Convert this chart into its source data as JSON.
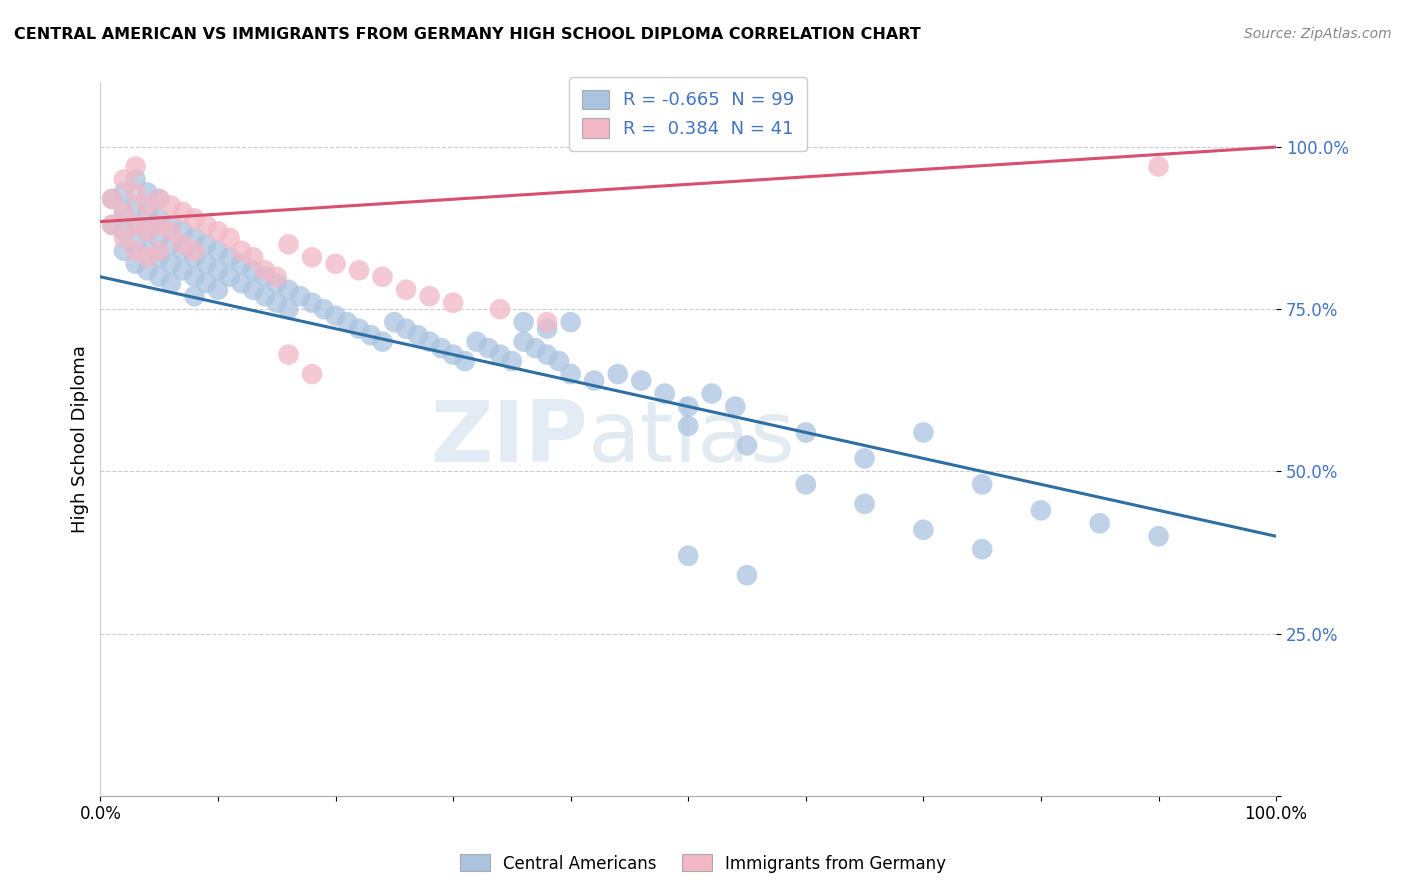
{
  "title": "CENTRAL AMERICAN VS IMMIGRANTS FROM GERMANY HIGH SCHOOL DIPLOMA CORRELATION CHART",
  "source": "Source: ZipAtlas.com",
  "ylabel": "High School Diploma",
  "ytick_labels": [
    "",
    "25.0%",
    "50.0%",
    "75.0%",
    "100.0%"
  ],
  "ytick_positions": [
    0.0,
    0.25,
    0.5,
    0.75,
    1.0
  ],
  "xlim": [
    0.0,
    1.0
  ],
  "ylim": [
    0.0,
    1.1
  ],
  "blue_R": -0.665,
  "blue_N": 99,
  "pink_R": 0.384,
  "pink_N": 41,
  "blue_color": "#aac4e0",
  "blue_line_color": "#2e6fa3",
  "pink_color": "#f2b8c6",
  "pink_line_color": "#d94f70",
  "watermark_zip": "ZIP",
  "watermark_atlas": "atlas",
  "legend_label_blue": "Central Americans",
  "legend_label_pink": "Immigrants from Germany",
  "blue_trend_start_y": 0.8,
  "blue_trend_end_y": 0.4,
  "pink_trend_start_y": 0.885,
  "pink_trend_end_y": 1.0,
  "blue_scatter_x": [
    0.01,
    0.01,
    0.02,
    0.02,
    0.02,
    0.02,
    0.03,
    0.03,
    0.03,
    0.03,
    0.03,
    0.04,
    0.04,
    0.04,
    0.04,
    0.04,
    0.05,
    0.05,
    0.05,
    0.05,
    0.05,
    0.06,
    0.06,
    0.06,
    0.06,
    0.07,
    0.07,
    0.07,
    0.08,
    0.08,
    0.08,
    0.08,
    0.09,
    0.09,
    0.09,
    0.1,
    0.1,
    0.1,
    0.11,
    0.11,
    0.12,
    0.12,
    0.13,
    0.13,
    0.14,
    0.14,
    0.15,
    0.15,
    0.16,
    0.16,
    0.17,
    0.18,
    0.19,
    0.2,
    0.21,
    0.22,
    0.23,
    0.24,
    0.25,
    0.26,
    0.27,
    0.28,
    0.29,
    0.3,
    0.31,
    0.32,
    0.33,
    0.34,
    0.35,
    0.36,
    0.37,
    0.38,
    0.39,
    0.4,
    0.42,
    0.44,
    0.46,
    0.48,
    0.5,
    0.52,
    0.54,
    0.36,
    0.38,
    0.4,
    0.5,
    0.55,
    0.6,
    0.65,
    0.7,
    0.75,
    0.8,
    0.85,
    0.9,
    0.5,
    0.55,
    0.6,
    0.65,
    0.7,
    0.75
  ],
  "blue_scatter_y": [
    0.92,
    0.88,
    0.93,
    0.9,
    0.87,
    0.84,
    0.91,
    0.88,
    0.85,
    0.82,
    0.95,
    0.9,
    0.87,
    0.84,
    0.81,
    0.93,
    0.89,
    0.86,
    0.83,
    0.8,
    0.92,
    0.88,
    0.85,
    0.82,
    0.79,
    0.87,
    0.84,
    0.81,
    0.86,
    0.83,
    0.8,
    0.77,
    0.85,
    0.82,
    0.79,
    0.84,
    0.81,
    0.78,
    0.83,
    0.8,
    0.82,
    0.79,
    0.81,
    0.78,
    0.8,
    0.77,
    0.79,
    0.76,
    0.78,
    0.75,
    0.77,
    0.76,
    0.75,
    0.74,
    0.73,
    0.72,
    0.71,
    0.7,
    0.73,
    0.72,
    0.71,
    0.7,
    0.69,
    0.68,
    0.67,
    0.7,
    0.69,
    0.68,
    0.67,
    0.7,
    0.69,
    0.68,
    0.67,
    0.65,
    0.64,
    0.65,
    0.64,
    0.62,
    0.6,
    0.62,
    0.6,
    0.73,
    0.72,
    0.73,
    0.57,
    0.54,
    0.56,
    0.52,
    0.56,
    0.48,
    0.44,
    0.42,
    0.4,
    0.37,
    0.34,
    0.48,
    0.45,
    0.41,
    0.38
  ],
  "pink_scatter_x": [
    0.01,
    0.01,
    0.02,
    0.02,
    0.02,
    0.03,
    0.03,
    0.03,
    0.03,
    0.04,
    0.04,
    0.04,
    0.05,
    0.05,
    0.05,
    0.06,
    0.06,
    0.07,
    0.07,
    0.08,
    0.08,
    0.09,
    0.1,
    0.11,
    0.12,
    0.13,
    0.14,
    0.15,
    0.16,
    0.18,
    0.2,
    0.22,
    0.24,
    0.26,
    0.28,
    0.3,
    0.34,
    0.38,
    0.16,
    0.18,
    0.9
  ],
  "pink_scatter_y": [
    0.92,
    0.88,
    0.95,
    0.9,
    0.86,
    0.93,
    0.88,
    0.84,
    0.97,
    0.91,
    0.87,
    0.83,
    0.92,
    0.88,
    0.84,
    0.91,
    0.87,
    0.9,
    0.85,
    0.89,
    0.84,
    0.88,
    0.87,
    0.86,
    0.84,
    0.83,
    0.81,
    0.8,
    0.85,
    0.83,
    0.82,
    0.81,
    0.8,
    0.78,
    0.77,
    0.76,
    0.75,
    0.73,
    0.68,
    0.65,
    0.97
  ]
}
